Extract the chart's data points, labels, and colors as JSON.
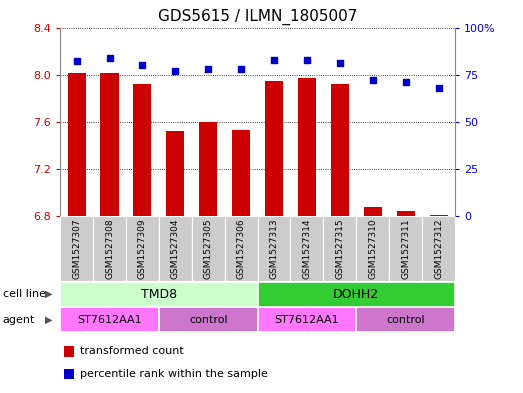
{
  "title": "GDS5615 / ILMN_1805007",
  "samples": [
    "GSM1527307",
    "GSM1527308",
    "GSM1527309",
    "GSM1527304",
    "GSM1527305",
    "GSM1527306",
    "GSM1527313",
    "GSM1527314",
    "GSM1527315",
    "GSM1527310",
    "GSM1527311",
    "GSM1527312"
  ],
  "transformed_count": [
    8.01,
    8.01,
    7.92,
    7.52,
    7.6,
    7.53,
    7.95,
    7.97,
    7.92,
    6.88,
    6.84,
    6.81
  ],
  "percentile_rank": [
    82,
    84,
    80,
    77,
    78,
    78,
    83,
    83,
    81,
    72,
    71,
    68
  ],
  "ylim_left": [
    6.8,
    8.4
  ],
  "ylim_right": [
    0,
    100
  ],
  "yticks_left": [
    6.8,
    7.2,
    7.6,
    8.0,
    8.4
  ],
  "yticks_right": [
    0,
    25,
    50,
    75,
    100
  ],
  "ytick_labels_left": [
    "6.8",
    "7.2",
    "7.6",
    "8.0",
    "8.4"
  ],
  "ytick_labels_right": [
    "0",
    "25",
    "50",
    "75",
    "100%"
  ],
  "bar_color": "#cc0000",
  "dot_color": "#0000cc",
  "bar_width": 0.55,
  "cell_line_groups": [
    {
      "label": "TMD8",
      "start": 0,
      "end": 6,
      "color": "#ccffcc"
    },
    {
      "label": "DOHH2",
      "start": 6,
      "end": 12,
      "color": "#33cc33"
    }
  ],
  "agent_groups": [
    {
      "label": "ST7612AA1",
      "start": 0,
      "end": 3,
      "color": "#ff77ff"
    },
    {
      "label": "control",
      "start": 3,
      "end": 6,
      "color": "#cc77cc"
    },
    {
      "label": "ST7612AA1",
      "start": 6,
      "end": 9,
      "color": "#ff77ff"
    },
    {
      "label": "control",
      "start": 9,
      "end": 12,
      "color": "#cc77cc"
    }
  ],
  "legend_items": [
    {
      "label": "transformed count",
      "color": "#cc0000"
    },
    {
      "label": "percentile rank within the sample",
      "color": "#0000cc"
    }
  ],
  "row_label_cell_line": "cell line",
  "row_label_agent": "agent",
  "background_color": "#ffffff",
  "plot_bg_color": "#ffffff",
  "grid_color": "#000000",
  "tick_color_left": "#cc0000",
  "tick_color_right": "#0000cc",
  "xtick_bg_color": "#cccccc",
  "title_fontsize": 11,
  "tick_fontsize": 8,
  "label_fontsize": 8,
  "bar_label_fontsize": 7
}
